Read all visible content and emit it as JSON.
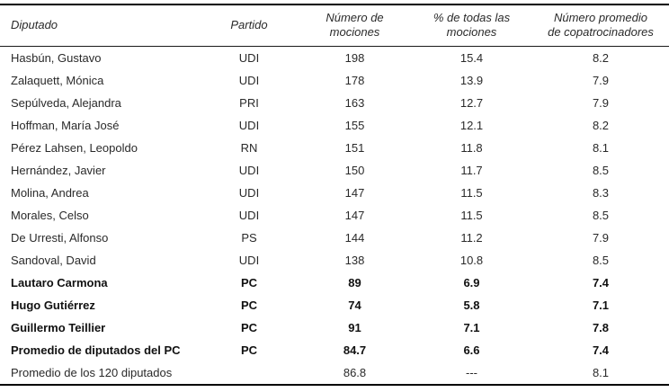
{
  "table": {
    "columns": {
      "diputado": "Diputado",
      "partido": "Partido",
      "mociones": "Número de\nmociones",
      "porcentaje": "% de todas las\nmociones",
      "copatrocinadores": "Número promedio\nde copatrocinadores"
    },
    "rows": [
      {
        "diputado": "Hasbún, Gustavo",
        "partido": "UDI",
        "mociones": "198",
        "porcentaje": "15.4",
        "copatrocinadores": "8.2"
      },
      {
        "diputado": "Zalaquett, Mónica",
        "partido": "UDI",
        "mociones": "178",
        "porcentaje": "13.9",
        "copatrocinadores": "7.9"
      },
      {
        "diputado": "Sepúlveda, Alejandra",
        "partido": "PRI",
        "mociones": "163",
        "porcentaje": "12.7",
        "copatrocinadores": "7.9"
      },
      {
        "diputado": "Hoffman, María José",
        "partido": "UDI",
        "mociones": "155",
        "porcentaje": "12.1",
        "copatrocinadores": "8.2"
      },
      {
        "diputado": "Pérez Lahsen, Leopoldo",
        "partido": "RN",
        "mociones": "151",
        "porcentaje": "11.8",
        "copatrocinadores": "8.1"
      },
      {
        "diputado": "Hernández, Javier",
        "partido": "UDI",
        "mociones": "150",
        "porcentaje": "11.7",
        "copatrocinadores": "8.5"
      },
      {
        "diputado": "Molina, Andrea",
        "partido": "UDI",
        "mociones": "147",
        "porcentaje": "11.5",
        "copatrocinadores": "8.3"
      },
      {
        "diputado": "Morales, Celso",
        "partido": "UDI",
        "mociones": "147",
        "porcentaje": "11.5",
        "copatrocinadores": "8.5"
      },
      {
        "diputado": "De Urresti, Alfonso",
        "partido": "PS",
        "mociones": "144",
        "porcentaje": "11.2",
        "copatrocinadores": "7.9"
      },
      {
        "diputado": "Sandoval, David",
        "partido": "UDI",
        "mociones": "138",
        "porcentaje": "10.8",
        "copatrocinadores": "8.5"
      },
      {
        "diputado": "Lautaro Carmona",
        "partido": "PC",
        "mociones": "89",
        "porcentaje": "6.9",
        "copatrocinadores": "7.4"
      },
      {
        "diputado": "Hugo Gutiérrez",
        "partido": "PC",
        "mociones": "74",
        "porcentaje": "5.8",
        "copatrocinadores": "7.1"
      },
      {
        "diputado": "Guillermo Teillier",
        "partido": "PC",
        "mociones": "91",
        "porcentaje": "7.1",
        "copatrocinadores": "7.8"
      },
      {
        "diputado": "Promedio de diputados del PC",
        "partido": "PC",
        "mociones": "84.7",
        "porcentaje": "6.6",
        "copatrocinadores": "7.4"
      },
      {
        "diputado": "Promedio de los 120 diputados",
        "partido": "",
        "mociones": "86.8",
        "porcentaje": "---",
        "copatrocinadores": "8.1"
      }
    ]
  }
}
